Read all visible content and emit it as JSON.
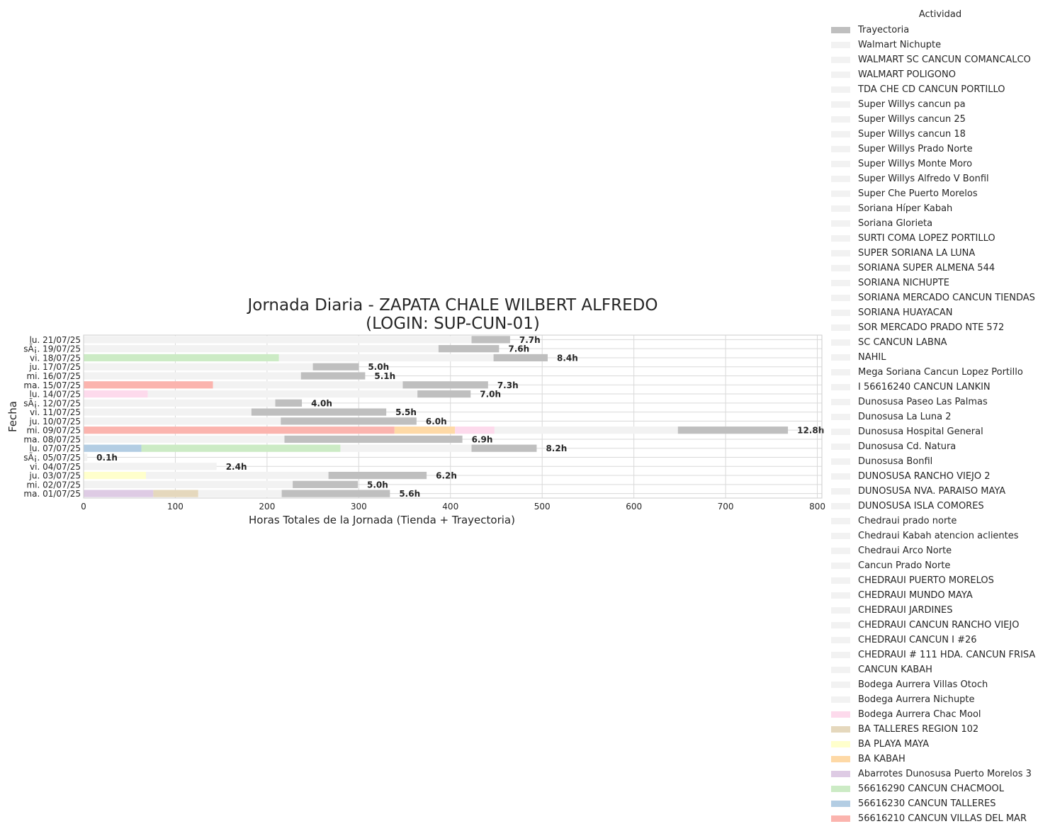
{
  "chart_data": {
    "type": "bar",
    "orientation": "horizontal",
    "stacked": true,
    "title": "Jornada Diaria - ZAPATA CHALE WILBERT ALFREDO",
    "subtitle": "(LOGIN: SUP-CUN-01)",
    "xlabel": "Horas Totales de la Jornada (Tienda + Trayectoria)",
    "ylabel": "Fecha",
    "xlim": [
      0,
      805
    ],
    "xticks": [
      0,
      100,
      200,
      300,
      400,
      500,
      600,
      700,
      800
    ],
    "grid": true,
    "legend": {
      "title": "Actividad",
      "placement": "outside-right",
      "entries": [
        {
          "name": "Trayectoria",
          "color": "#bfbfbf"
        },
        {
          "name": "Walmart Nichupte",
          "color": "#f2f2f2"
        },
        {
          "name": "WALMART SC CANCUN COMANCALCO",
          "color": "#f2f2f2"
        },
        {
          "name": "WALMART POLIGONO",
          "color": "#f2f2f2"
        },
        {
          "name": "TDA CHE CD CANCUN PORTILLO",
          "color": "#f2f2f2"
        },
        {
          "name": "Super Willys cancun pa",
          "color": "#f2f2f2"
        },
        {
          "name": "Super Willys cancun 25",
          "color": "#f2f2f2"
        },
        {
          "name": "Super Willys cancun 18",
          "color": "#f2f2f2"
        },
        {
          "name": "Super Willys Prado Norte",
          "color": "#f2f2f2"
        },
        {
          "name": "Super Willys Monte Moro",
          "color": "#f2f2f2"
        },
        {
          "name": "Super Willys Alfredo V Bonfil",
          "color": "#f2f2f2"
        },
        {
          "name": "Super Che Puerto Morelos",
          "color": "#f2f2f2"
        },
        {
          "name": "Soriana Híper Kabah",
          "color": "#f2f2f2"
        },
        {
          "name": "Soriana Glorieta",
          "color": "#f2f2f2"
        },
        {
          "name": "SURTI COMA LOPEZ PORTILLO",
          "color": "#f2f2f2"
        },
        {
          "name": "SUPER SORIANA LA LUNA",
          "color": "#f2f2f2"
        },
        {
          "name": "SORIANA SUPER ALMENA 544",
          "color": "#f2f2f2"
        },
        {
          "name": "SORIANA NICHUPTE",
          "color": "#f2f2f2"
        },
        {
          "name": "SORIANA MERCADO CANCUN TIENDAS",
          "color": "#f2f2f2"
        },
        {
          "name": "SORIANA HUAYACAN",
          "color": "#f2f2f2"
        },
        {
          "name": "SOR MERCADO PRADO NTE 572",
          "color": "#f2f2f2"
        },
        {
          "name": "SC CANCUN LABNA",
          "color": "#f2f2f2"
        },
        {
          "name": "NAHIL",
          "color": "#f2f2f2"
        },
        {
          "name": "Mega Soriana Cancun Lopez Portillo",
          "color": "#f2f2f2"
        },
        {
          "name": "I 56616240 CANCUN LANKIN",
          "color": "#f2f2f2"
        },
        {
          "name": "Dunosusa Paseo Las Palmas",
          "color": "#f2f2f2"
        },
        {
          "name": "Dunosusa La Luna 2",
          "color": "#f2f2f2"
        },
        {
          "name": "Dunosusa Hospital General",
          "color": "#f2f2f2"
        },
        {
          "name": "Dunosusa Cd. Natura",
          "color": "#f2f2f2"
        },
        {
          "name": "Dunosusa Bonfil",
          "color": "#f2f2f2"
        },
        {
          "name": "DUNOSUSA RANCHO VIEJO 2",
          "color": "#f2f2f2"
        },
        {
          "name": "DUNOSUSA NVA. PARAISO MAYA",
          "color": "#f2f2f2"
        },
        {
          "name": "DUNOSUSA ISLA COMORES",
          "color": "#f2f2f2"
        },
        {
          "name": "Chedraui prado norte",
          "color": "#f2f2f2"
        },
        {
          "name": "Chedraui Kabah atencion aclientes",
          "color": "#f2f2f2"
        },
        {
          "name": "Chedraui Arco Norte",
          "color": "#f2f2f2"
        },
        {
          "name": "Cancun Prado Norte",
          "color": "#f2f2f2"
        },
        {
          "name": "CHEDRAUI PUERTO MORELOS",
          "color": "#f2f2f2"
        },
        {
          "name": "CHEDRAUI MUNDO MAYA",
          "color": "#f2f2f2"
        },
        {
          "name": "CHEDRAUI JARDINES",
          "color": "#f2f2f2"
        },
        {
          "name": "CHEDRAUI CANCUN RANCHO VIEJO",
          "color": "#f2f2f2"
        },
        {
          "name": "CHEDRAUI CANCUN I #26",
          "color": "#f2f2f2"
        },
        {
          "name": "CHEDRAUI # 111 HDA. CANCUN FRISA",
          "color": "#f2f2f2"
        },
        {
          "name": "CANCUN KABAH",
          "color": "#f2f2f2"
        },
        {
          "name": "Bodega Aurrera Villas Otoch",
          "color": "#f2f2f2"
        },
        {
          "name": "Bodega Aurrera Nichupte",
          "color": "#f2f2f2"
        },
        {
          "name": "Bodega Aurrera Chac Mool",
          "color": "#fddaec"
        },
        {
          "name": "BA TALLERES REGION 102",
          "color": "#e5d8bd"
        },
        {
          "name": "BA PLAYA MAYA",
          "color": "#ffffcc"
        },
        {
          "name": "BA KABAH",
          "color": "#fed9a6"
        },
        {
          "name": "Abarrotes Dunosusa Puerto Morelos 3",
          "color": "#decbe4"
        },
        {
          "name": "56616290 CANCUN CHACMOOL",
          "color": "#ccebc5"
        },
        {
          "name": "56616230 CANCUN TALLERES",
          "color": "#b3cde3"
        },
        {
          "name": "56616210 CANCUN VILLAS DEL MAR",
          "color": "#fbb4ae"
        }
      ]
    },
    "rows": [
      {
        "date": "ma. 01/07/25",
        "total_label": "5.6h",
        "segments": [
          {
            "activity": "Abarrotes Dunosusa Puerto Morelos 3",
            "start": 0,
            "end": 76,
            "color": "#decbe4"
          },
          {
            "activity": "BA TALLERES REGION 102",
            "start": 76,
            "end": 125,
            "color": "#e5d8bd"
          },
          {
            "activity": "Tienda",
            "start": 125,
            "end": 216,
            "color": "#f2f2f2"
          },
          {
            "activity": "Trayectoria",
            "start": 216,
            "end": 334,
            "color": "#bfbfbf"
          }
        ]
      },
      {
        "date": "mi. 02/07/25",
        "total_label": "5.0h",
        "segments": [
          {
            "activity": "Tienda",
            "start": 0,
            "end": 228,
            "color": "#f2f2f2"
          },
          {
            "activity": "Trayectoria",
            "start": 228,
            "end": 299,
            "color": "#bfbfbf"
          }
        ]
      },
      {
        "date": "ju. 03/07/25",
        "total_label": "6.2h",
        "segments": [
          {
            "activity": "BA PLAYA MAYA",
            "start": 0,
            "end": 68,
            "color": "#ffffcc"
          },
          {
            "activity": "Tienda",
            "start": 68,
            "end": 267,
            "color": "#f2f2f2"
          },
          {
            "activity": "Trayectoria",
            "start": 267,
            "end": 374,
            "color": "#bfbfbf"
          }
        ]
      },
      {
        "date": "vi. 04/07/25",
        "total_label": "2.4h",
        "segments": [
          {
            "activity": "Tienda",
            "start": 0,
            "end": 145,
            "color": "#f2f2f2"
          }
        ]
      },
      {
        "date": "sÃ¡. 05/07/25",
        "total_label": "0.1h",
        "segments": [
          {
            "activity": "Tienda",
            "start": 0,
            "end": 4,
            "color": "#f2f2f2"
          }
        ]
      },
      {
        "date": "lu. 07/07/25",
        "total_label": "8.2h",
        "segments": [
          {
            "activity": "56616230 CANCUN TALLERES",
            "start": 0,
            "end": 63,
            "color": "#b3cde3"
          },
          {
            "activity": "56616290 CANCUN CHACMOOL",
            "start": 63,
            "end": 280,
            "color": "#ccebc5"
          },
          {
            "activity": "Tienda",
            "start": 280,
            "end": 423,
            "color": "#f2f2f2"
          },
          {
            "activity": "Trayectoria",
            "start": 423,
            "end": 494,
            "color": "#bfbfbf"
          }
        ]
      },
      {
        "date": "ma. 08/07/25",
        "total_label": "6.9h",
        "segments": [
          {
            "activity": "Tienda",
            "start": 0,
            "end": 219,
            "color": "#f2f2f2"
          },
          {
            "activity": "Trayectoria",
            "start": 219,
            "end": 413,
            "color": "#bfbfbf"
          }
        ]
      },
      {
        "date": "mi. 09/07/25",
        "total_label": "12.8h",
        "segments": [
          {
            "activity": "56616210 CANCUN VILLAS DEL MAR",
            "start": 0,
            "end": 339,
            "color": "#fbb4ae"
          },
          {
            "activity": "BA KABAH",
            "start": 339,
            "end": 405,
            "color": "#fed9a6"
          },
          {
            "activity": "Bodega Aurrera Chac Mool",
            "start": 405,
            "end": 448,
            "color": "#fddaec"
          },
          {
            "activity": "Tienda",
            "start": 448,
            "end": 648,
            "color": "#f2f2f2"
          },
          {
            "activity": "Trayectoria",
            "start": 648,
            "end": 768,
            "color": "#bfbfbf"
          }
        ]
      },
      {
        "date": "ju. 10/07/25",
        "total_label": "6.0h",
        "segments": [
          {
            "activity": "Tienda",
            "start": 0,
            "end": 215,
            "color": "#f2f2f2"
          },
          {
            "activity": "Trayectoria",
            "start": 215,
            "end": 363,
            "color": "#bfbfbf"
          }
        ]
      },
      {
        "date": "vi. 11/07/25",
        "total_label": "5.5h",
        "segments": [
          {
            "activity": "Tienda",
            "start": 0,
            "end": 183,
            "color": "#f2f2f2"
          },
          {
            "activity": "Trayectoria",
            "start": 183,
            "end": 330,
            "color": "#bfbfbf"
          }
        ]
      },
      {
        "date": "sÃ¡. 12/07/25",
        "total_label": "4.0h",
        "segments": [
          {
            "activity": "Tienda",
            "start": 0,
            "end": 209,
            "color": "#f2f2f2"
          },
          {
            "activity": "Trayectoria",
            "start": 209,
            "end": 238,
            "color": "#bfbfbf"
          }
        ]
      },
      {
        "date": "lu. 14/07/25",
        "total_label": "7.0h",
        "segments": [
          {
            "activity": "Bodega Aurrera Chac Mool",
            "start": 0,
            "end": 70,
            "color": "#fddaec"
          },
          {
            "activity": "Tienda",
            "start": 70,
            "end": 364,
            "color": "#f2f2f2"
          },
          {
            "activity": "Trayectoria",
            "start": 364,
            "end": 422,
            "color": "#bfbfbf"
          }
        ]
      },
      {
        "date": "ma. 15/07/25",
        "total_label": "7.3h",
        "segments": [
          {
            "activity": "56616210 CANCUN VILLAS DEL MAR",
            "start": 0,
            "end": 141,
            "color": "#fbb4ae"
          },
          {
            "activity": "Tienda",
            "start": 141,
            "end": 348,
            "color": "#f2f2f2"
          },
          {
            "activity": "Trayectoria",
            "start": 348,
            "end": 441,
            "color": "#bfbfbf"
          }
        ]
      },
      {
        "date": "mi. 16/07/25",
        "total_label": "5.1h",
        "segments": [
          {
            "activity": "Tienda",
            "start": 0,
            "end": 237,
            "color": "#f2f2f2"
          },
          {
            "activity": "Trayectoria",
            "start": 237,
            "end": 307,
            "color": "#bfbfbf"
          }
        ]
      },
      {
        "date": "ju. 17/07/25",
        "total_label": "5.0h",
        "segments": [
          {
            "activity": "Tienda",
            "start": 0,
            "end": 250,
            "color": "#f2f2f2"
          },
          {
            "activity": "Trayectoria",
            "start": 250,
            "end": 300,
            "color": "#bfbfbf"
          }
        ]
      },
      {
        "date": "vi. 18/07/25",
        "total_label": "8.4h",
        "segments": [
          {
            "activity": "56616290 CANCUN CHACMOOL",
            "start": 0,
            "end": 213,
            "color": "#ccebc5"
          },
          {
            "activity": "Tienda",
            "start": 213,
            "end": 447,
            "color": "#f2f2f2"
          },
          {
            "activity": "Trayectoria",
            "start": 447,
            "end": 506,
            "color": "#bfbfbf"
          }
        ]
      },
      {
        "date": "sÃ¡. 19/07/25",
        "total_label": "7.6h",
        "segments": [
          {
            "activity": "Tienda",
            "start": 0,
            "end": 387,
            "color": "#f2f2f2"
          },
          {
            "activity": "Trayectoria",
            "start": 387,
            "end": 453,
            "color": "#bfbfbf"
          }
        ]
      },
      {
        "date": "lu. 21/07/25",
        "total_label": "7.7h",
        "segments": [
          {
            "activity": "Tienda",
            "start": 0,
            "end": 423,
            "color": "#f2f2f2"
          },
          {
            "activity": "Trayectoria",
            "start": 423,
            "end": 465,
            "color": "#bfbfbf"
          }
        ]
      }
    ]
  }
}
